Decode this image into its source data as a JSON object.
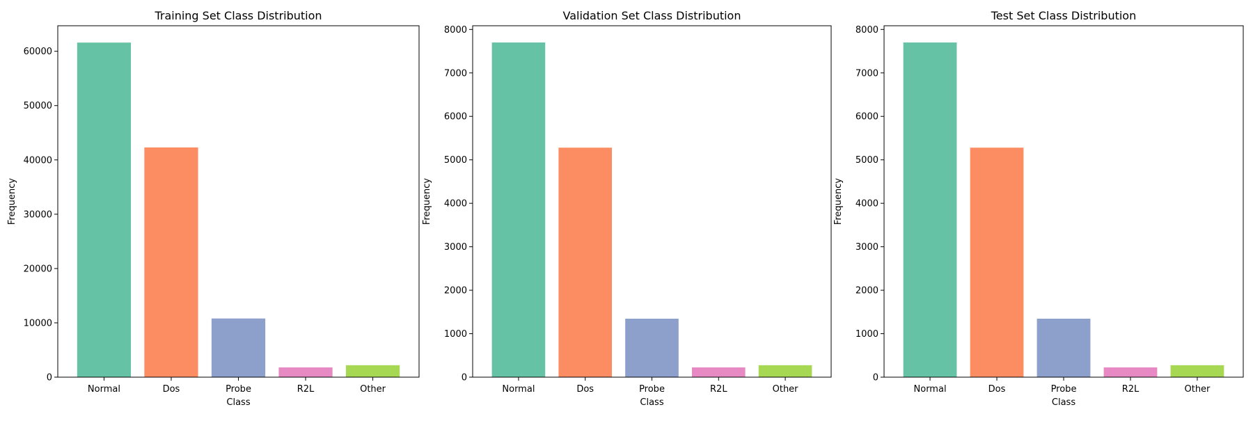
{
  "colors": [
    "#66c2a5",
    "#fc8d62",
    "#8da0cb",
    "#e78ac3",
    "#a6d854"
  ],
  "chart_data": [
    {
      "type": "bar",
      "title": "Training Set Class Distribution",
      "xlabel": "Class",
      "ylabel": "Frequency",
      "categories": [
        "Normal",
        "Dos",
        "Probe",
        "R2L",
        "Other"
      ],
      "values": [
        61600,
        42300,
        10800,
        1800,
        2200
      ],
      "ylim": [
        0,
        64700
      ],
      "yticks": [
        0,
        10000,
        20000,
        30000,
        40000,
        50000,
        60000
      ],
      "grid": false,
      "legend": "none"
    },
    {
      "type": "bar",
      "title": "Validation Set Class Distribution",
      "xlabel": "Class",
      "ylabel": "Frequency",
      "categories": [
        "Normal",
        "Dos",
        "Probe",
        "R2L",
        "Other"
      ],
      "values": [
        7700,
        5280,
        1345,
        225,
        275
      ],
      "ylim": [
        0,
        8085
      ],
      "yticks": [
        0,
        1000,
        2000,
        3000,
        4000,
        5000,
        6000,
        7000,
        8000
      ],
      "grid": false,
      "legend": "none"
    },
    {
      "type": "bar",
      "title": "Test Set Class Distribution",
      "xlabel": "Class",
      "ylabel": "Frequency",
      "categories": [
        "Normal",
        "Dos",
        "Probe",
        "R2L",
        "Other"
      ],
      "values": [
        7700,
        5280,
        1345,
        225,
        275
      ],
      "ylim": [
        0,
        8085
      ],
      "yticks": [
        0,
        1000,
        2000,
        3000,
        4000,
        5000,
        6000,
        7000,
        8000
      ],
      "grid": false,
      "legend": "none"
    }
  ]
}
